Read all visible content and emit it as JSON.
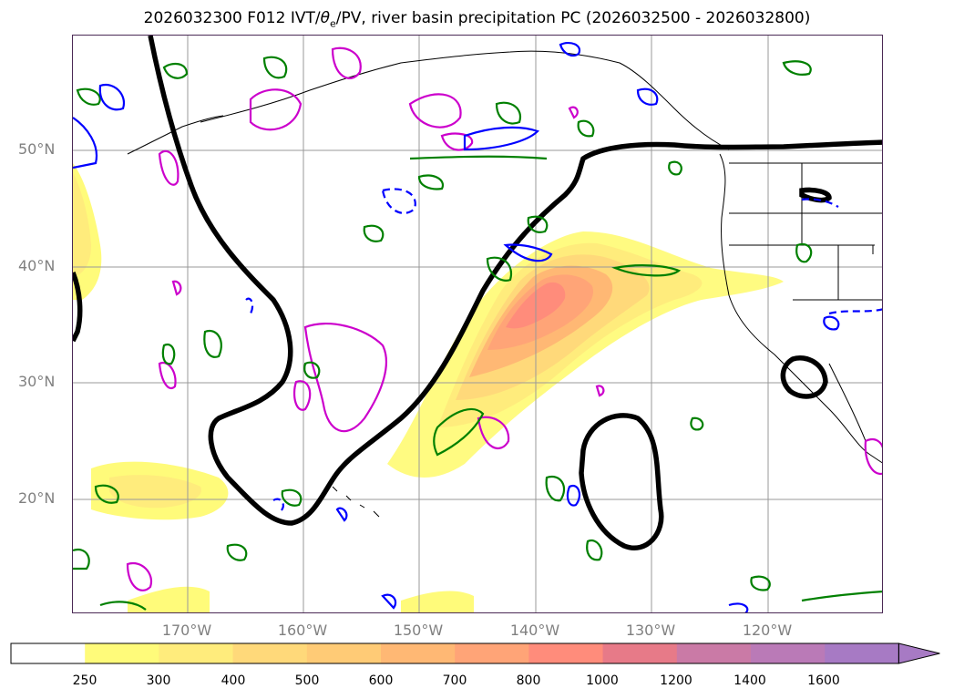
{
  "title": "2026032300 F012 IVT/θe/PV, river basin precipitation PC (2026032500 - 2026032800)",
  "title_parts": {
    "prefix": "2026032300 F012 IVT/",
    "theta": "θ",
    "sub": "e",
    "suffix": "/PV, river basin precipitation PC (2026032500 - 2026032800)"
  },
  "lat_labels": [
    "50°N",
    "40°N",
    "30°N",
    "20°N"
  ],
  "lon_labels": [
    "170°W",
    "160°W",
    "150°W",
    "140°W",
    "130°W",
    "120°W"
  ],
  "colorbar": {
    "ticks": [
      "250",
      "300",
      "400",
      "500",
      "600",
      "700",
      "800",
      "1000",
      "1200",
      "1400",
      "1600"
    ],
    "colors": [
      "#ffffff",
      "#fffb7a",
      "#ffec7c",
      "#ffd97a",
      "#ffcb76",
      "#ffb874",
      "#ffa477",
      "#ff8c7b",
      "#e77a88",
      "#ca7aa6",
      "#ba7ab7",
      "#a77ac4"
    ],
    "extend": "max"
  },
  "contour_colors": {
    "theta_e": "#000000",
    "pv": "#cc00cc",
    "green": "#008000",
    "blue": "#0000ff",
    "coast": "#000000"
  }
}
